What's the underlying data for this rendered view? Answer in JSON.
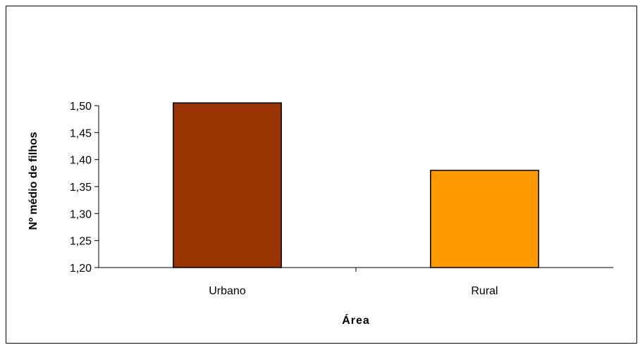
{
  "chart_data": {
    "type": "bar",
    "categories": [
      "Urbano",
      "Rural"
    ],
    "values": [
      1.505,
      1.38
    ],
    "colors": [
      "#993300",
      "#FF9900"
    ],
    "xlabel": "Área",
    "ylabel": "Nº médio de filhos",
    "ylim": [
      1.2,
      1.5
    ],
    "yticks": [
      "1,20",
      "1,25",
      "1,30",
      "1,35",
      "1,40",
      "1,45",
      "1,50"
    ],
    "grid": false,
    "legend": "none"
  }
}
